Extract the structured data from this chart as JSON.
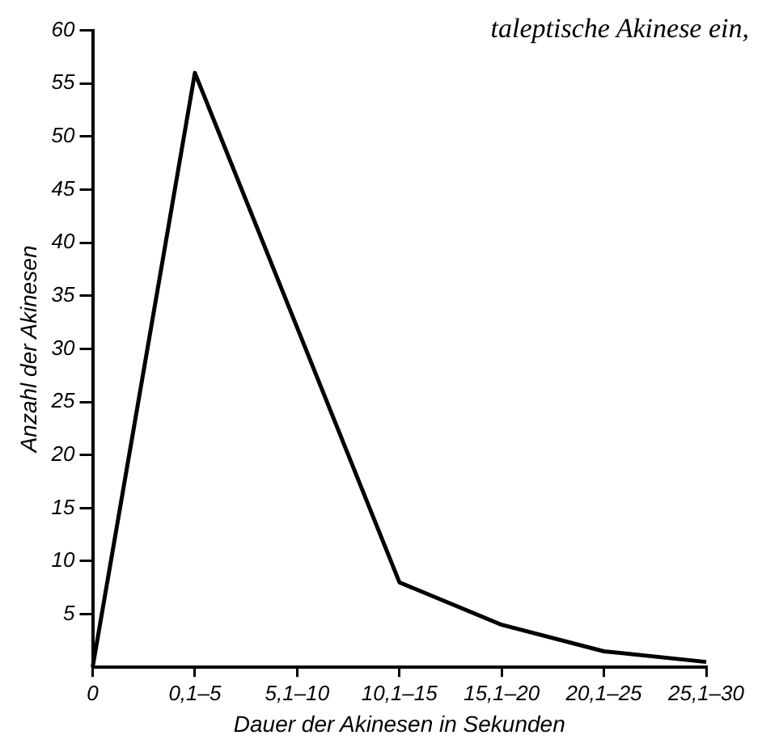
{
  "chart_data": {
    "type": "line",
    "categories": [
      "0",
      "0,1–5",
      "5,1–10",
      "10,1–15",
      "15,1–20",
      "20,1–25",
      "25,1–30"
    ],
    "series": [
      {
        "color": "#000000",
        "values": [
          0,
          56,
          32,
          8,
          4,
          1.5,
          0.5
        ]
      }
    ],
    "ylim": [
      0,
      60
    ],
    "yticks": [
      5,
      10,
      15,
      20,
      25,
      30,
      35,
      40,
      45,
      50,
      55,
      60
    ],
    "xlabel": "Dauer der Akinesen in Sekunden",
    "ylabel": "Anzahl der Akinesen",
    "annotations": [
      "taleptische Akinese ein,"
    ],
    "grid": false,
    "legend": false,
    "marker": "none",
    "line_style": "solid"
  }
}
